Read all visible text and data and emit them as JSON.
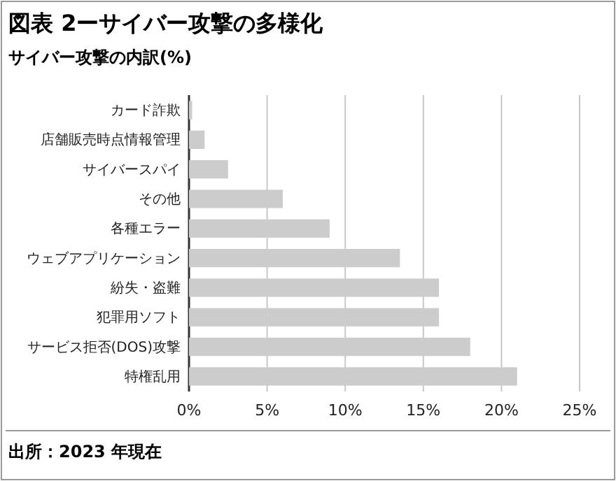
{
  "chart_data": {
    "type": "bar",
    "orientation": "horizontal",
    "title": "図表 2ーサイバー攻撃の多様化",
    "subtitle": "サイバー攻撃の内訳(%)",
    "categories": [
      "カード詐欺",
      "店舗販売時点情報管理",
      "サイバースパイ",
      "その他",
      "各種エラー",
      "ウェブアプリケーション",
      "紛失・盗難",
      "犯罪用ソフト",
      "サービス拒否(DOS)攻撃",
      "特権乱用"
    ],
    "values": [
      0.2,
      1,
      2.5,
      6,
      9,
      13.5,
      16,
      16,
      18,
      21
    ],
    "color": "#cccccc",
    "xlim": [
      0,
      25
    ],
    "xticks": [
      {
        "value": 0,
        "label": "0%"
      },
      {
        "value": 5,
        "label": "5%"
      },
      {
        "value": 10,
        "label": "10%"
      },
      {
        "value": 15,
        "label": "15%"
      },
      {
        "value": 20,
        "label": "20%"
      },
      {
        "value": 25,
        "label": "25%"
      }
    ],
    "grid": "x",
    "annotations": [
      "出所：2023 年現在"
    ]
  }
}
